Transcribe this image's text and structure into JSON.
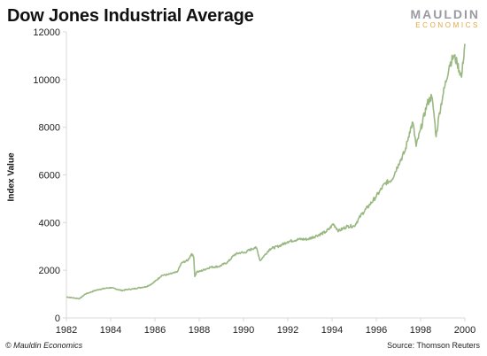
{
  "header": {
    "title": "Dow Jones Industrial Average"
  },
  "logo": {
    "main": "MAULDIN",
    "sub": "ECONOMICS"
  },
  "footer": {
    "copyright": "© Mauldin Economics",
    "source": "Source: Thomson Reuters"
  },
  "colors": {
    "line": "#9ab882",
    "axis": "#d9d9d9",
    "tick_text": "#222222",
    "logo_gray": "#9a9ba0",
    "logo_orange": "#e8a43c"
  },
  "chart_data": {
    "type": "line",
    "title": "Dow Jones Industrial Average",
    "xlabel": "",
    "ylabel": "Index Value",
    "xlim": [
      1982,
      2000
    ],
    "ylim": [
      0,
      12000
    ],
    "x_ticks": [
      "1982",
      "1984",
      "1986",
      "1988",
      "1990",
      "1992",
      "1994",
      "1996",
      "1998",
      "2000"
    ],
    "y_ticks": [
      "0",
      "2000",
      "4000",
      "6000",
      "8000",
      "10000",
      "12000"
    ],
    "grid": false,
    "legend": "none",
    "series": [
      {
        "color": "#9ab882",
        "points": [
          [
            1982.0,
            880
          ],
          [
            1982.3,
            840
          ],
          [
            1982.6,
            810
          ],
          [
            1982.85,
            1000
          ],
          [
            1983.0,
            1050
          ],
          [
            1983.3,
            1150
          ],
          [
            1983.5,
            1200
          ],
          [
            1983.8,
            1250
          ],
          [
            1984.0,
            1270
          ],
          [
            1984.3,
            1200
          ],
          [
            1984.5,
            1150
          ],
          [
            1984.8,
            1200
          ],
          [
            1985.0,
            1210
          ],
          [
            1985.3,
            1270
          ],
          [
            1985.6,
            1310
          ],
          [
            1985.9,
            1450
          ],
          [
            1986.0,
            1530
          ],
          [
            1986.3,
            1780
          ],
          [
            1986.6,
            1820
          ],
          [
            1986.9,
            1900
          ],
          [
            1987.0,
            1920
          ],
          [
            1987.2,
            2300
          ],
          [
            1987.5,
            2430
          ],
          [
            1987.65,
            2690
          ],
          [
            1987.75,
            2560
          ],
          [
            1987.8,
            1740
          ],
          [
            1987.9,
            1950
          ],
          [
            1988.0,
            1940
          ],
          [
            1988.5,
            2130
          ],
          [
            1988.9,
            2160
          ],
          [
            1989.3,
            2350
          ],
          [
            1989.6,
            2660
          ],
          [
            1989.9,
            2750
          ],
          [
            1990.0,
            2720
          ],
          [
            1990.5,
            2950
          ],
          [
            1990.6,
            2910
          ],
          [
            1990.75,
            2400
          ],
          [
            1990.95,
            2630
          ],
          [
            1991.2,
            2900
          ],
          [
            1991.6,
            3010
          ],
          [
            1992.0,
            3200
          ],
          [
            1992.5,
            3300
          ],
          [
            1992.9,
            3300
          ],
          [
            1993.3,
            3450
          ],
          [
            1993.7,
            3600
          ],
          [
            1993.9,
            3760
          ],
          [
            1994.05,
            3950
          ],
          [
            1994.3,
            3650
          ],
          [
            1994.7,
            3850
          ],
          [
            1995.0,
            3850
          ],
          [
            1995.3,
            4300
          ],
          [
            1995.7,
            4750
          ],
          [
            1996.0,
            5100
          ],
          [
            1996.4,
            5650
          ],
          [
            1996.7,
            5800
          ],
          [
            1997.0,
            6450
          ],
          [
            1997.3,
            7000
          ],
          [
            1997.5,
            7800
          ],
          [
            1997.65,
            8200
          ],
          [
            1997.8,
            7200
          ],
          [
            1998.0,
            7900
          ],
          [
            1998.3,
            9000
          ],
          [
            1998.5,
            9300
          ],
          [
            1998.6,
            8600
          ],
          [
            1998.7,
            7600
          ],
          [
            1998.85,
            8600
          ],
          [
            1999.0,
            9300
          ],
          [
            1999.3,
            10600
          ],
          [
            1999.5,
            11000
          ],
          [
            1999.65,
            10700
          ],
          [
            1999.85,
            10100
          ],
          [
            2000.0,
            11500
          ]
        ]
      }
    ]
  }
}
